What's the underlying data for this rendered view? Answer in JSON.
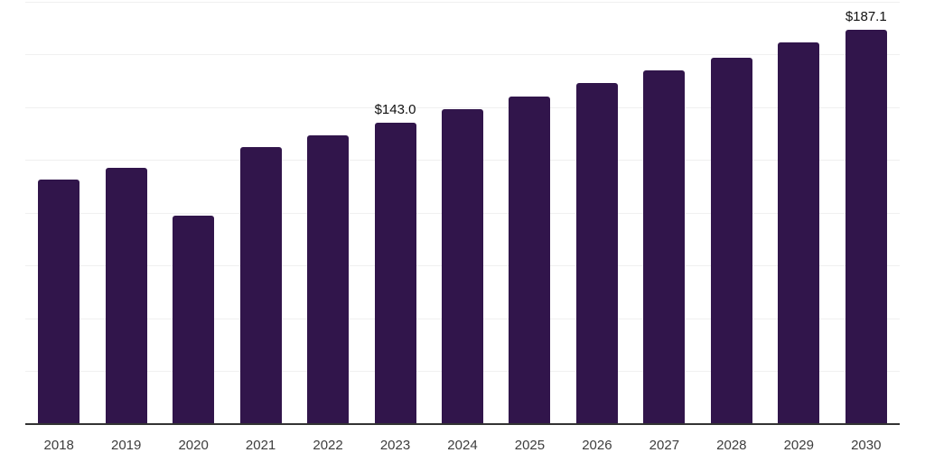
{
  "chart_data": {
    "type": "bar",
    "title": "",
    "xlabel": "",
    "ylabel": "",
    "categories": [
      "2018",
      "2019",
      "2020",
      "2021",
      "2022",
      "2023",
      "2024",
      "2025",
      "2026",
      "2027",
      "2028",
      "2029",
      "2030"
    ],
    "values": [
      116,
      121.5,
      99,
      131.5,
      137,
      143.0,
      149.5,
      155.5,
      161.5,
      167.5,
      173.5,
      181,
      187.1
    ],
    "data_labels": [
      "",
      "",
      "",
      "",
      "",
      "$143.0",
      "",
      "",
      "",
      "",
      "",
      "",
      "$187.1"
    ],
    "ylim": [
      0,
      200
    ],
    "grid_step": 25,
    "grid": "horizontal-only",
    "y_tick_labels": "none",
    "legend": "none",
    "colors": {
      "bar": "#31154b",
      "gridline": "#f0f0f0",
      "axis_line": "#333333",
      "tick_label": "#3d3d3d",
      "data_label": "#111111",
      "background": "#ffffff"
    }
  }
}
